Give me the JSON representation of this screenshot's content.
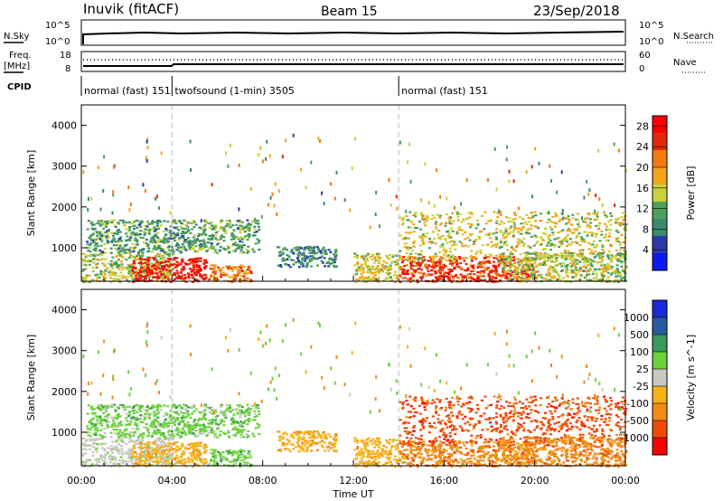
{
  "header": {
    "station": "Inuvik (fitACF)",
    "beam": "Beam 15",
    "date": "23/Sep/2018"
  },
  "strips": {
    "nsky_label": "N.Sky",
    "nsky_ticks": [
      "10^5",
      "10^0"
    ],
    "nsearch_label": "N.Search",
    "nsearch_ticks": [
      "10^5",
      "10^0"
    ],
    "freq_label": "Freq.",
    "freq_unit": "[MHz]",
    "freq_ticks": [
      "18",
      "8"
    ],
    "nave_label": "Nave",
    "nave_ticks": [
      "60",
      "0"
    ],
    "cpid_label": "CPID",
    "cpid_segments": [
      {
        "label": "normal (fast) 151",
        "start_h": 0,
        "end_h": 4
      },
      {
        "label": "twofsound (1-min) 3505",
        "start_h": 4,
        "end_h": 14
      },
      {
        "label": "normal (fast) 151",
        "start_h": 14,
        "end_h": 24
      }
    ]
  },
  "colors": {
    "power_scale": [
      "#0a1af0",
      "#2a3aa8",
      "#3b8a6b",
      "#4fa05a",
      "#c9d23a",
      "#f2a51a",
      "#f27a10",
      "#e02a0a",
      "#ff0000"
    ],
    "velocity_scale": [
      "#ff0000",
      "#f04a0a",
      "#f28a14",
      "#f5b21a",
      "#c8c8c0",
      "#6cd23a",
      "#3a9a5a",
      "#2a5aa0",
      "#1a2ad8"
    ]
  },
  "chart_data": [
    {
      "type": "heatmap",
      "title": "",
      "xlabel": "Time UT",
      "ylabel": "Slant Range [km]",
      "xlim": [
        0,
        24
      ],
      "ylim": [
        180,
        4500
      ],
      "x_ticks": [
        "00:00",
        "04:00",
        "08:00",
        "12:00",
        "16:00",
        "20:00",
        "00:00"
      ],
      "y_ticks": [
        1000,
        2000,
        3000,
        4000
      ],
      "colorbar_label": "Power [dB]",
      "colorbar_ticks": [
        4,
        8,
        12,
        16,
        20,
        24,
        28
      ],
      "colorbar_range": [
        0,
        30
      ],
      "regions": [
        {
          "t0": 0.0,
          "t1": 4.0,
          "r0": 180,
          "r1": 900,
          "level": 14
        },
        {
          "t0": 2.2,
          "t1": 5.5,
          "r0": 180,
          "r1": 780,
          "level": 29
        },
        {
          "t0": 5.5,
          "t1": 7.5,
          "r0": 180,
          "r1": 600,
          "level": 22
        },
        {
          "t0": 0.2,
          "t1": 7.8,
          "r0": 900,
          "r1": 1700,
          "level": 10
        },
        {
          "t0": 8.6,
          "t1": 11.2,
          "r0": 550,
          "r1": 1050,
          "level": 8
        },
        {
          "t0": 12.0,
          "t1": 14.0,
          "r0": 180,
          "r1": 900,
          "level": 16
        },
        {
          "t0": 14.0,
          "t1": 20.0,
          "r0": 180,
          "r1": 800,
          "level": 26
        },
        {
          "t0": 14.0,
          "t1": 24.0,
          "r0": 700,
          "r1": 1900,
          "level": 16
        },
        {
          "t0": 18.5,
          "t1": 24.0,
          "r0": 180,
          "r1": 900,
          "level": 14
        }
      ]
    },
    {
      "type": "heatmap",
      "title": "",
      "xlabel": "Time UT",
      "ylabel": "Slant Range [km]",
      "xlim": [
        0,
        24
      ],
      "ylim": [
        180,
        4500
      ],
      "x_ticks": [
        "00:00",
        "04:00",
        "08:00",
        "12:00",
        "16:00",
        "20:00",
        "00:00"
      ],
      "y_ticks": [
        1000,
        2000,
        3000,
        4000
      ],
      "colorbar_label": "Velocity [m s^-1]",
      "colorbar_ticks": [
        1000,
        500,
        100,
        25,
        -25,
        -100,
        -500,
        -1000
      ],
      "regions": [
        {
          "t0": 0.0,
          "t1": 4.0,
          "r0": 180,
          "r1": 900,
          "level": "25"
        },
        {
          "t0": 2.2,
          "t1": 5.5,
          "r0": 180,
          "r1": 780,
          "level": "-25"
        },
        {
          "t0": 5.5,
          "t1": 7.5,
          "r0": 180,
          "r1": 600,
          "level": "100"
        },
        {
          "t0": 0.2,
          "t1": 7.8,
          "r0": 900,
          "r1": 1700,
          "level": "100"
        },
        {
          "t0": 8.6,
          "t1": 11.2,
          "r0": 550,
          "r1": 1050,
          "level": "-25"
        },
        {
          "t0": 12.0,
          "t1": 14.0,
          "r0": 180,
          "r1": 900,
          "level": "-25"
        },
        {
          "t0": 14.0,
          "t1": 20.0,
          "r0": 180,
          "r1": 800,
          "level": "-100"
        },
        {
          "t0": 14.0,
          "t1": 24.0,
          "r0": 700,
          "r1": 1900,
          "level": "-500"
        },
        {
          "t0": 18.5,
          "t1": 24.0,
          "r0": 180,
          "r1": 900,
          "level": "-100"
        }
      ]
    }
  ]
}
